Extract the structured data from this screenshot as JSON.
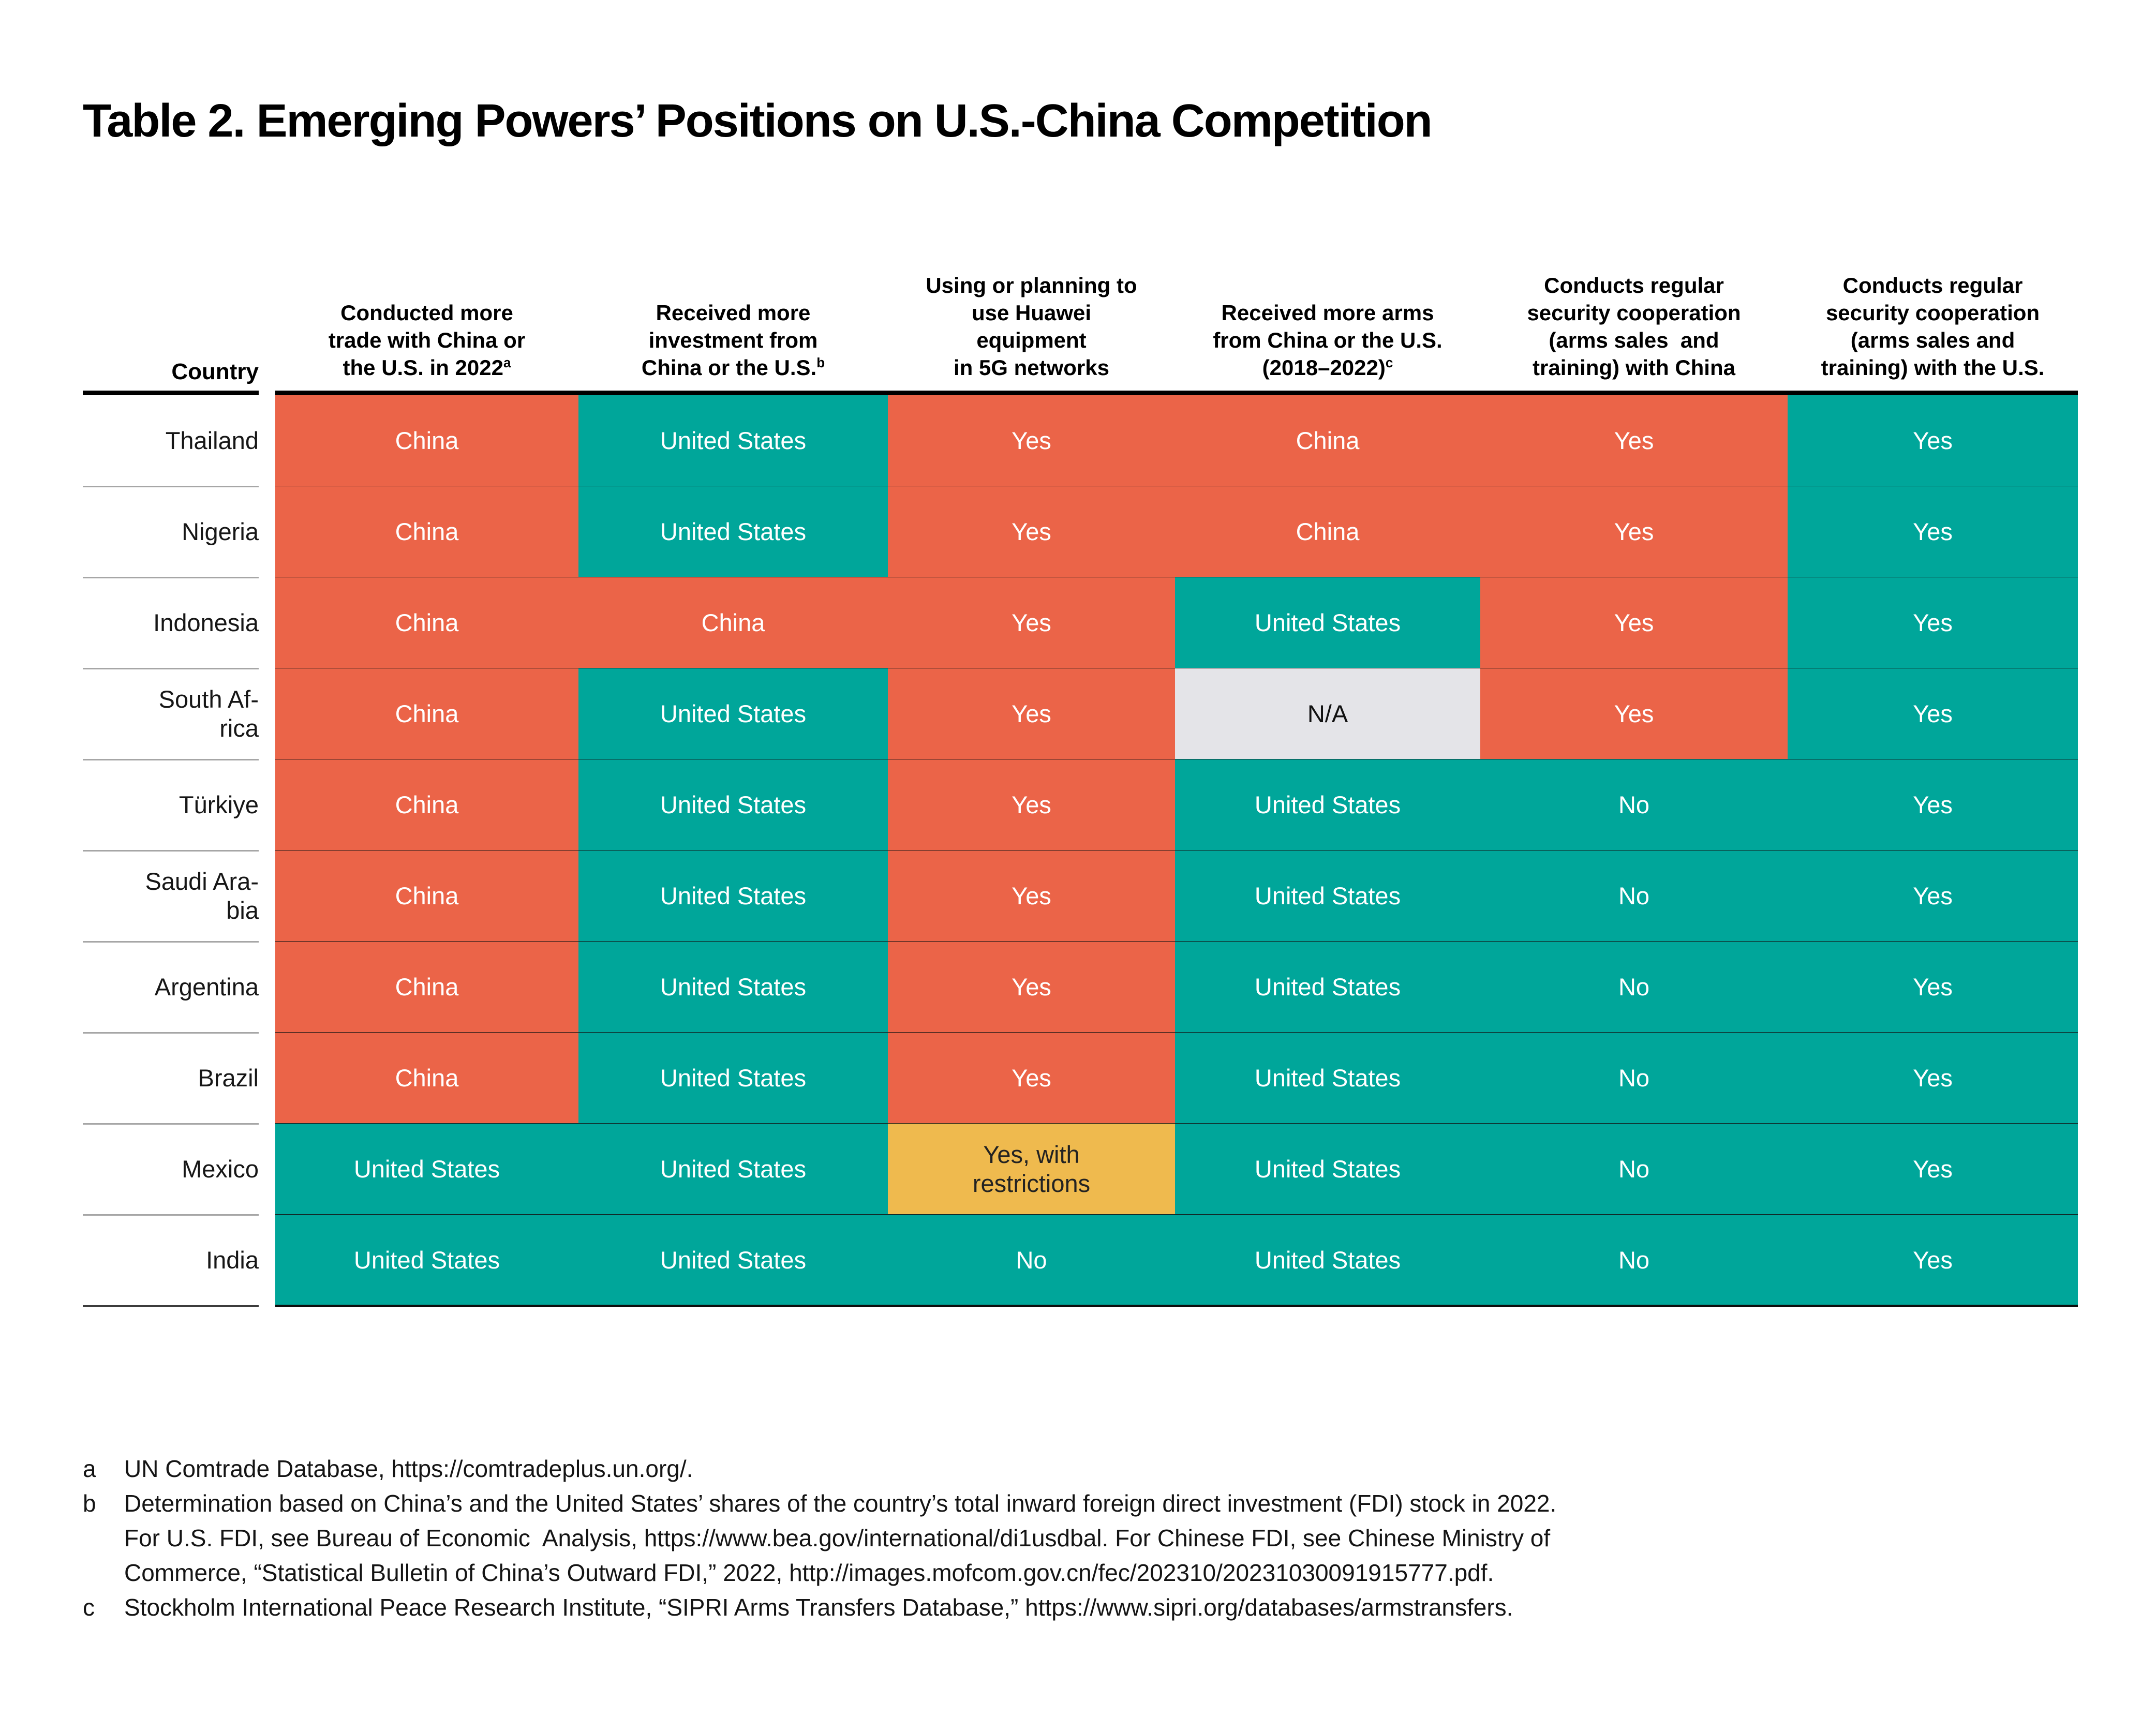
{
  "title": "Table 2. Emerging Powers’ Positions on U.S.-China Competition",
  "table": {
    "country_header": "Country",
    "columns": [
      {
        "lines": [
          "Conducted more",
          "trade with China or",
          "the U.S. in 2022"
        ],
        "sup": "a"
      },
      {
        "lines": [
          "Received more",
          "investment from",
          "China or the U.S."
        ],
        "sup": "b"
      },
      {
        "lines": [
          "Using or planning to",
          "use Huawei",
          "equipment",
          "in 5G networks"
        ]
      },
      {
        "lines": [
          "Received more arms",
          "from China or the U.S.",
          "(2018–2022)"
        ],
        "sup": "c"
      },
      {
        "lines": [
          "Conducts regular",
          "security cooperation",
          "(arms sales  and",
          "training) with China"
        ]
      },
      {
        "lines": [
          "Conducts regular",
          "security cooperation",
          "(arms sales and",
          "training) with the U.S."
        ]
      }
    ],
    "rows": [
      {
        "country": [
          "Thailand"
        ],
        "cells": [
          {
            "text": [
              "China"
            ],
            "type": "china"
          },
          {
            "text": [
              "United States"
            ],
            "type": "us"
          },
          {
            "text": [
              "Yes"
            ],
            "type": "china"
          },
          {
            "text": [
              "China"
            ],
            "type": "china"
          },
          {
            "text": [
              "Yes"
            ],
            "type": "china"
          },
          {
            "text": [
              "Yes"
            ],
            "type": "us"
          }
        ]
      },
      {
        "country": [
          "Nigeria"
        ],
        "cells": [
          {
            "text": [
              "China"
            ],
            "type": "china"
          },
          {
            "text": [
              "United States"
            ],
            "type": "us"
          },
          {
            "text": [
              "Yes"
            ],
            "type": "china"
          },
          {
            "text": [
              "China"
            ],
            "type": "china"
          },
          {
            "text": [
              "Yes"
            ],
            "type": "china"
          },
          {
            "text": [
              "Yes"
            ],
            "type": "us"
          }
        ]
      },
      {
        "country": [
          "Indonesia"
        ],
        "cells": [
          {
            "text": [
              "China"
            ],
            "type": "china"
          },
          {
            "text": [
              "China"
            ],
            "type": "china"
          },
          {
            "text": [
              "Yes"
            ],
            "type": "china"
          },
          {
            "text": [
              "United States"
            ],
            "type": "us"
          },
          {
            "text": [
              "Yes"
            ],
            "type": "china"
          },
          {
            "text": [
              "Yes"
            ],
            "type": "us"
          }
        ]
      },
      {
        "country": [
          "South Af-",
          "rica"
        ],
        "cells": [
          {
            "text": [
              "China"
            ],
            "type": "china"
          },
          {
            "text": [
              "United States"
            ],
            "type": "us"
          },
          {
            "text": [
              "Yes"
            ],
            "type": "china"
          },
          {
            "text": [
              "N/A"
            ],
            "type": "na"
          },
          {
            "text": [
              "Yes"
            ],
            "type": "china"
          },
          {
            "text": [
              "Yes"
            ],
            "type": "us"
          }
        ]
      },
      {
        "country": [
          "Türkiye"
        ],
        "cells": [
          {
            "text": [
              "China"
            ],
            "type": "china"
          },
          {
            "text": [
              "United States"
            ],
            "type": "us"
          },
          {
            "text": [
              "Yes"
            ],
            "type": "china"
          },
          {
            "text": [
              "United States"
            ],
            "type": "us"
          },
          {
            "text": [
              "No"
            ],
            "type": "us"
          },
          {
            "text": [
              "Yes"
            ],
            "type": "us"
          }
        ]
      },
      {
        "country": [
          "Saudi Ara-",
          "bia"
        ],
        "cells": [
          {
            "text": [
              "China"
            ],
            "type": "china"
          },
          {
            "text": [
              "United States"
            ],
            "type": "us"
          },
          {
            "text": [
              "Yes"
            ],
            "type": "china"
          },
          {
            "text": [
              "United States"
            ],
            "type": "us"
          },
          {
            "text": [
              "No"
            ],
            "type": "us"
          },
          {
            "text": [
              "Yes"
            ],
            "type": "us"
          }
        ]
      },
      {
        "country": [
          "Argentina"
        ],
        "cells": [
          {
            "text": [
              "China"
            ],
            "type": "china"
          },
          {
            "text": [
              "United States"
            ],
            "type": "us"
          },
          {
            "text": [
              "Yes"
            ],
            "type": "china"
          },
          {
            "text": [
              "United States"
            ],
            "type": "us"
          },
          {
            "text": [
              "No"
            ],
            "type": "us"
          },
          {
            "text": [
              "Yes"
            ],
            "type": "us"
          }
        ]
      },
      {
        "country": [
          "Brazil"
        ],
        "cells": [
          {
            "text": [
              "China"
            ],
            "type": "china"
          },
          {
            "text": [
              "United States"
            ],
            "type": "us"
          },
          {
            "text": [
              "Yes"
            ],
            "type": "china"
          },
          {
            "text": [
              "United States"
            ],
            "type": "us"
          },
          {
            "text": [
              "No"
            ],
            "type": "us"
          },
          {
            "text": [
              "Yes"
            ],
            "type": "us"
          }
        ]
      },
      {
        "country": [
          "Mexico"
        ],
        "cells": [
          {
            "text": [
              "United States"
            ],
            "type": "us"
          },
          {
            "text": [
              "United States"
            ],
            "type": "us"
          },
          {
            "text": [
              "Yes, with",
              "restrictions"
            ],
            "type": "restricted"
          },
          {
            "text": [
              "United States"
            ],
            "type": "us"
          },
          {
            "text": [
              "No"
            ],
            "type": "us"
          },
          {
            "text": [
              "Yes"
            ],
            "type": "us"
          }
        ]
      },
      {
        "country": [
          "India"
        ],
        "cells": [
          {
            "text": [
              "United States"
            ],
            "type": "us"
          },
          {
            "text": [
              "United States"
            ],
            "type": "us"
          },
          {
            "text": [
              "No"
            ],
            "type": "us"
          },
          {
            "text": [
              "United States"
            ],
            "type": "us"
          },
          {
            "text": [
              "No"
            ],
            "type": "us"
          },
          {
            "text": [
              "Yes"
            ],
            "type": "us"
          }
        ]
      }
    ]
  },
  "colors": {
    "china": {
      "bg": "#EB6448",
      "fg": "#FFFFFF"
    },
    "us": {
      "bg": "#00A69A",
      "fg": "#FFFFFF"
    },
    "na": {
      "bg": "#E4E4E8",
      "fg": "#111111"
    },
    "restricted": {
      "bg": "#EFBA4E",
      "fg": "#222222"
    }
  },
  "footnotes": [
    {
      "marker": "a",
      "lines": [
        "UN Comtrade Database, https://comtradeplus.un.org/."
      ]
    },
    {
      "marker": "b",
      "lines": [
        "Determination based on China’s and the United States’ shares of the country’s total inward foreign direct investment (FDI) stock in 2022.",
        "For U.S. FDI, see Bureau of Economic  Analysis, https://www.bea.gov/international/di1usdbal. For Chinese FDI, see Chinese Ministry of",
        "Commerce, “Statistical Bulletin of China’s Outward FDI,” 2022, http://images.mofcom.gov.cn/fec/202310/20231030091915777.pdf."
      ]
    },
    {
      "marker": "c",
      "lines": [
        "Stockholm International Peace Research Institute, “SIPRI Arms Transfers Database,” https://www.sipri.org/databases/armstransfers."
      ]
    }
  ]
}
